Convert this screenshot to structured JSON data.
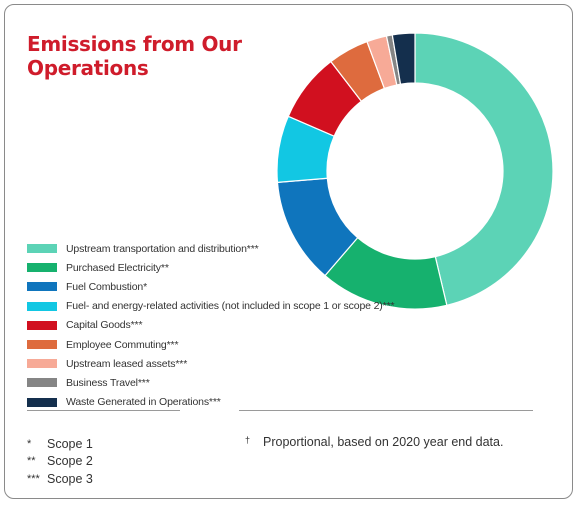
{
  "chart_data": {
    "type": "pie",
    "title": "Emissions from Our Operations",
    "donut": true,
    "legend_position": "bottom-left",
    "categories": [
      "Upstream transportation and distribution***",
      "Purchased Electricity**",
      "Fuel Combustion*",
      "Fuel- and energy-related activities (not included in scope 1 or scope 2)***",
      "Capital Goods***",
      "Employee Commuting***",
      "Upstream leased assets***",
      "Business Travel***",
      "Waste Generated in Operations***"
    ],
    "values": [
      47.5,
      15.4,
      12.7,
      8.0,
      8.3,
      4.9,
      2.4,
      0.7,
      2.7
    ],
    "colors": [
      "#5cd3b6",
      "#16b16e",
      "#0f75bd",
      "#12c7e3",
      "#d1101f",
      "#de6b3e",
      "#f7aa97",
      "#858585",
      "#142f4d"
    ]
  },
  "notes": {
    "scope_symbols": [
      "*",
      "**",
      "***"
    ],
    "scope_labels": [
      "Scope 1",
      "Scope 2",
      "Scope 3"
    ],
    "dagger_symbol": "†",
    "dagger_text": "Proportional, based on 2020 year end data."
  }
}
